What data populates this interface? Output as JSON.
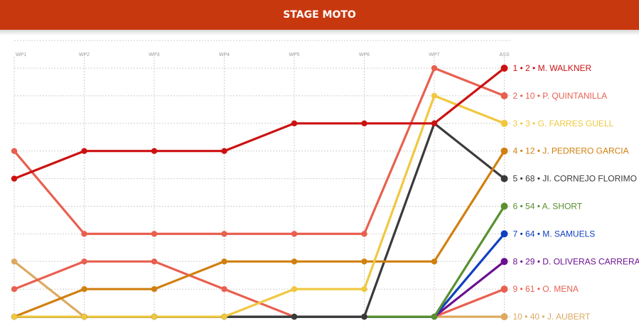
{
  "header": {
    "title": "STAGE MOTO"
  },
  "chart_data": {
    "type": "line",
    "title": "STAGE MOTO",
    "x": [
      "WP1",
      "WP2",
      "WP3",
      "WP4",
      "WP5",
      "WP6",
      "WP7",
      "ASS"
    ],
    "ylabel": "",
    "xlabel": "",
    "y_reversed": true,
    "ylim": [
      1,
      10
    ],
    "grid": true,
    "series": [
      {
        "name": "1 • 2 • M. WALKNER",
        "color": "#cc1111",
        "values": [
          5,
          4,
          4,
          4,
          3,
          3,
          3,
          1
        ]
      },
      {
        "name": "2 • 10 • P. QUINTANILLA",
        "color": "#e86050",
        "values": [
          4,
          7,
          7,
          7,
          7,
          7,
          1,
          2
        ]
      },
      {
        "name": "3 • 3 • G. FARRES GUELL",
        "color": "#f0c840",
        "values": [
          10,
          10,
          10,
          10,
          9,
          9,
          2,
          3
        ]
      },
      {
        "name": "4 • 12 • J. PEDRERO GARCIA",
        "color": "#d08010",
        "values": [
          10,
          9,
          9,
          8,
          8,
          8,
          8,
          4
        ]
      },
      {
        "name": "5 • 68 • JI. CORNEJO FLORIMO",
        "color": "#3a3a3a",
        "values": [
          10,
          10,
          10,
          10,
          10,
          10,
          3,
          5
        ]
      },
      {
        "name": "6 • 54 • A. SHORT",
        "color": "#5a9030",
        "values": [
          10,
          10,
          10,
          10,
          10,
          10,
          10,
          6
        ]
      },
      {
        "name": "7 • 64 • M. SAMUELS",
        "color": "#1040c0",
        "values": [
          10,
          10,
          10,
          10,
          10,
          10,
          10,
          7
        ]
      },
      {
        "name": "8 • 29 • D. OLIVERAS CARRERA",
        "color": "#6a1090",
        "values": [
          10,
          10,
          10,
          10,
          10,
          10,
          10,
          8
        ]
      },
      {
        "name": "9 • 61 • O. MENA",
        "color": "#e86050",
        "values": [
          9,
          8,
          8,
          9,
          10,
          10,
          10,
          9
        ]
      },
      {
        "name": "10 • 40 • J. AUBERT",
        "color": "#ddaa60",
        "values": [
          8,
          10,
          10,
          10,
          10,
          10,
          10,
          10
        ]
      }
    ]
  }
}
